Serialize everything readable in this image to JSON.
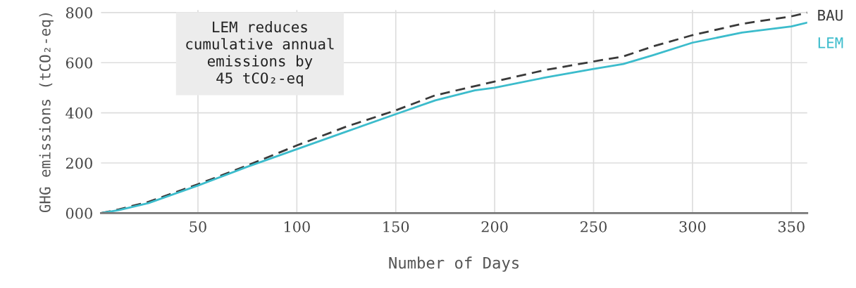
{
  "chart_data": {
    "type": "line",
    "xlabel": "Number of Days",
    "ylabel": "GHG emissions (tCO₂-eq)",
    "xlim": [
      1,
      358
    ],
    "xticks": [
      50,
      100,
      150,
      200,
      250,
      300,
      350
    ],
    "ylim": [
      0,
      810
    ],
    "yticks": [
      {
        "value": 0,
        "label": "000"
      },
      200,
      400,
      600,
      800
    ],
    "grid": true,
    "legend": false,
    "annotations": [
      "LEM reduces\ncumulative annual\nemissions by\n45 tCO₂-eq"
    ],
    "series": [
      {
        "name": "BAU",
        "color": "#3a3a3a",
        "line_style": "dashed",
        "x": [
          1,
          10,
          25,
          50,
          75,
          100,
          125,
          150,
          170,
          200,
          225,
          250,
          265,
          280,
          300,
          325,
          350,
          358
        ],
        "values": [
          0,
          15,
          45,
          115,
          190,
          270,
          345,
          410,
          470,
          525,
          570,
          605,
          625,
          665,
          710,
          755,
          785,
          800
        ]
      },
      {
        "name": "LEM",
        "color": "#3cbccc",
        "line_style": "solid",
        "x": [
          1,
          10,
          25,
          50,
          75,
          100,
          125,
          150,
          170,
          190,
          200,
          225,
          250,
          265,
          280,
          300,
          325,
          350,
          358
        ],
        "values": [
          0,
          12,
          40,
          110,
          185,
          255,
          325,
          395,
          450,
          490,
          500,
          540,
          575,
          595,
          630,
          680,
          720,
          745,
          760
        ]
      }
    ]
  }
}
